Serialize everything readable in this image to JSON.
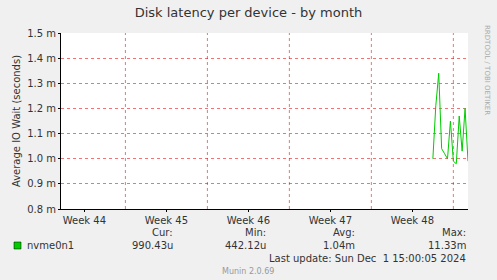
{
  "chart_data": {
    "type": "line",
    "title": "Disk latency per device - by month",
    "y_label": "Average IO Wait (seconds)",
    "categories": [
      null,
      null,
      null,
      null,
      null,
      null,
      null,
      null,
      "Week 44",
      null,
      null,
      null,
      null,
      null,
      null,
      null,
      null,
      null,
      null,
      null,
      null,
      null,
      null,
      null,
      null,
      null,
      null,
      null,
      null,
      null,
      null,
      null,
      null,
      null,
      null,
      null,
      "Week 45",
      null,
      null,
      null,
      null,
      null,
      null,
      null,
      null,
      null,
      null,
      null,
      null,
      null,
      null,
      null,
      null,
      null,
      null,
      null,
      null,
      null,
      null,
      null,
      null,
      null,
      null,
      null,
      "Week 46",
      null,
      null,
      null,
      null,
      null,
      null,
      null,
      null,
      null,
      null,
      null,
      null,
      null,
      null,
      null,
      null,
      null,
      null,
      null,
      null,
      null,
      null,
      null,
      null,
      null,
      null,
      null,
      "Week 47",
      null,
      null,
      null,
      null,
      null,
      null,
      null,
      null,
      null,
      null,
      null,
      null,
      null,
      null,
      null,
      null,
      null,
      null,
      null,
      null,
      null,
      null,
      null,
      null,
      null,
      null,
      null,
      "Week 48",
      null,
      null,
      null,
      null,
      null,
      null,
      null,
      null,
      null,
      null,
      null,
      null,
      null,
      null,
      null,
      null,
      null,
      null,
      null
    ],
    "series": [
      {
        "name": "nvme0n1",
        "color": "#00cc00",
        "values": [
          null,
          null,
          null,
          null,
          null,
          null,
          null,
          null,
          null,
          null,
          null,
          null,
          null,
          null,
          null,
          null,
          null,
          null,
          null,
          null,
          null,
          null,
          null,
          null,
          null,
          null,
          null,
          null,
          null,
          null,
          null,
          null,
          null,
          null,
          null,
          null,
          null,
          null,
          null,
          null,
          null,
          null,
          null,
          null,
          null,
          null,
          null,
          null,
          null,
          null,
          null,
          null,
          null,
          null,
          null,
          null,
          null,
          null,
          null,
          null,
          null,
          null,
          null,
          null,
          null,
          null,
          null,
          null,
          null,
          null,
          null,
          null,
          null,
          null,
          null,
          null,
          null,
          null,
          null,
          null,
          null,
          null,
          null,
          null,
          null,
          null,
          null,
          null,
          null,
          null,
          null,
          null,
          null,
          null,
          null,
          null,
          null,
          null,
          null,
          null,
          null,
          null,
          null,
          null,
          null,
          null,
          null,
          null,
          null,
          null,
          null,
          null,
          null,
          null,
          null,
          null,
          null,
          null,
          null,
          null,
          null,
          null,
          null,
          null,
          null,
          null,
          null,
          1.0,
          1.21,
          1.34,
          1.04,
          1.02,
          1.0,
          1.15,
          0.99,
          0.98,
          1.17,
          1.03,
          1.2,
          0.99
        ]
      }
    ],
    "ylim": [
      0.8,
      1.5
    ],
    "yticks": [
      {
        "value": 0.8,
        "label": "0.8 m"
      },
      {
        "value": 0.9,
        "label": "0.9 m"
      },
      {
        "value": 1.0,
        "label": "1.0 m"
      },
      {
        "value": 1.1,
        "label": "1.1 m"
      },
      {
        "value": 1.2,
        "label": "1.2 m"
      },
      {
        "value": 1.3,
        "label": "1.3 m"
      },
      {
        "value": 1.4,
        "label": "1.4 m"
      },
      {
        "value": 1.5,
        "label": "1.5 m"
      }
    ],
    "grid": true,
    "legend_table": {
      "headers": [
        "Cur:",
        "Min:",
        "Avg:",
        "Max:"
      ],
      "values": [
        "990.43u",
        "442.12u",
        "1.04m",
        "11.33m"
      ]
    },
    "last_update": "Last update: Sun Dec  1 15:00:05 2024",
    "footer": "Munin 2.0.69",
    "side_text": "RRDTOOL / TOBI OETIKER"
  }
}
